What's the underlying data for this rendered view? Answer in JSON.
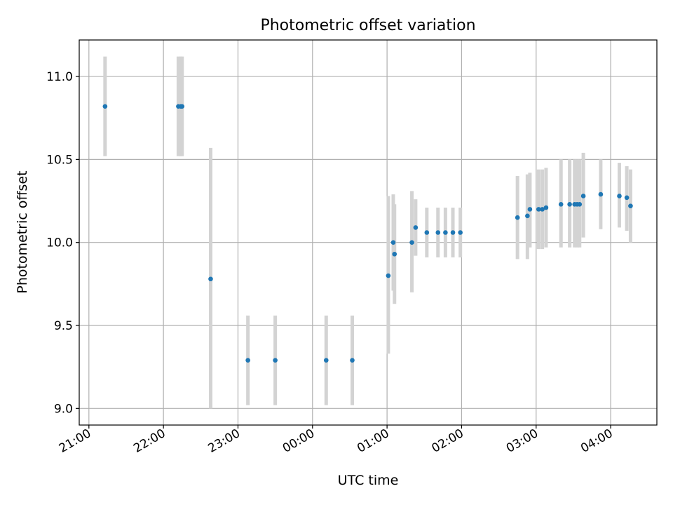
{
  "chart_data": {
    "type": "scatter",
    "title": "Photometric offset variation",
    "xlabel": "UTC time",
    "ylabel": "Photometric offset",
    "x_tick_labels": [
      "21:00",
      "22:00",
      "23:00",
      "00:00",
      "01:00",
      "02:00",
      "03:00",
      "04:00"
    ],
    "x_ticks_hours": [
      0,
      1,
      2,
      3,
      4,
      5,
      6,
      7
    ],
    "x_axis_origin": "21:00",
    "xlim_hours": [
      -0.13,
      7.62
    ],
    "y_tick_labels": [
      "9.0",
      "9.5",
      "10.0",
      "10.5",
      "11.0"
    ],
    "y_ticks": [
      9.0,
      9.5,
      10.0,
      10.5,
      11.0
    ],
    "ylim": [
      8.9,
      11.22
    ],
    "grid": true,
    "colors": {
      "point": "#1f77b4",
      "errorbar": "#d3d3d3",
      "grid": "#b0b0b0"
    },
    "series": [
      {
        "points": [
          {
            "t": "21:13",
            "y": 10.82,
            "lo": 10.52,
            "hi": 11.12
          },
          {
            "t": "22:12",
            "y": 10.82,
            "lo": 10.52,
            "hi": 11.12
          },
          {
            "t": "22:14",
            "y": 10.82,
            "lo": 10.52,
            "hi": 11.12
          },
          {
            "t": "22:15",
            "y": 10.82,
            "lo": 10.52,
            "hi": 11.12
          },
          {
            "t": "22:38",
            "y": 9.78,
            "lo": 9.0,
            "hi": 10.57
          },
          {
            "t": "23:08",
            "y": 9.29,
            "lo": 9.02,
            "hi": 9.56
          },
          {
            "t": "23:30",
            "y": 9.29,
            "lo": 9.02,
            "hi": 9.56
          },
          {
            "t": "00:11",
            "y": 9.29,
            "lo": 9.02,
            "hi": 9.56
          },
          {
            "t": "00:32",
            "y": 9.29,
            "lo": 9.02,
            "hi": 9.56
          },
          {
            "t": "01:01",
            "y": 9.8,
            "lo": 9.33,
            "hi": 10.28
          },
          {
            "t": "01:05",
            "y": 10.0,
            "lo": 9.71,
            "hi": 10.29
          },
          {
            "t": "01:06",
            "y": 9.93,
            "lo": 9.63,
            "hi": 10.23
          },
          {
            "t": "01:20",
            "y": 10.0,
            "lo": 9.7,
            "hi": 10.31
          },
          {
            "t": "01:23",
            "y": 10.09,
            "lo": 9.92,
            "hi": 10.26
          },
          {
            "t": "01:32",
            "y": 10.06,
            "lo": 9.91,
            "hi": 10.21
          },
          {
            "t": "01:41",
            "y": 10.06,
            "lo": 9.91,
            "hi": 10.21
          },
          {
            "t": "01:47",
            "y": 10.06,
            "lo": 9.91,
            "hi": 10.21
          },
          {
            "t": "01:53",
            "y": 10.06,
            "lo": 9.91,
            "hi": 10.21
          },
          {
            "t": "01:59",
            "y": 10.06,
            "lo": 9.91,
            "hi": 10.21
          },
          {
            "t": "02:45",
            "y": 10.15,
            "lo": 9.9,
            "hi": 10.4
          },
          {
            "t": "02:53",
            "y": 10.16,
            "lo": 9.9,
            "hi": 10.41
          },
          {
            "t": "02:55",
            "y": 10.2,
            "lo": 9.97,
            "hi": 10.42
          },
          {
            "t": "03:02",
            "y": 10.2,
            "lo": 9.96,
            "hi": 10.44
          },
          {
            "t": "03:05",
            "y": 10.2,
            "lo": 9.96,
            "hi": 10.44
          },
          {
            "t": "03:08",
            "y": 10.21,
            "lo": 9.97,
            "hi": 10.45
          },
          {
            "t": "03:20",
            "y": 10.23,
            "lo": 9.97,
            "hi": 10.5
          },
          {
            "t": "03:27",
            "y": 10.23,
            "lo": 9.97,
            "hi": 10.5
          },
          {
            "t": "03:31",
            "y": 10.23,
            "lo": 9.97,
            "hi": 10.5
          },
          {
            "t": "03:33",
            "y": 10.23,
            "lo": 9.97,
            "hi": 10.5
          },
          {
            "t": "03:35",
            "y": 10.23,
            "lo": 9.97,
            "hi": 10.5
          },
          {
            "t": "03:38",
            "y": 10.28,
            "lo": 10.03,
            "hi": 10.54
          },
          {
            "t": "03:52",
            "y": 10.29,
            "lo": 10.08,
            "hi": 10.5
          },
          {
            "t": "04:07",
            "y": 10.28,
            "lo": 10.09,
            "hi": 10.48
          },
          {
            "t": "04:13",
            "y": 10.27,
            "lo": 10.07,
            "hi": 10.46
          },
          {
            "t": "04:16",
            "y": 10.22,
            "lo": 10.0,
            "hi": 10.44
          }
        ]
      }
    ]
  }
}
